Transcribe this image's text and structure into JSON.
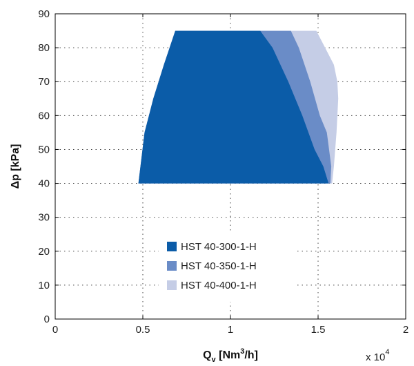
{
  "chart_data": {
    "type": "area",
    "xlabel_main": "Q",
    "xlabel_sub": "v",
    "xlabel_rest": " [Nm",
    "xlabel_sup": "3",
    "xlabel_end": "/h]",
    "ylabel": "Δp [kPa]",
    "x_multiplier_base": "x 10",
    "x_multiplier_exp": "4",
    "xlim": [
      0,
      20000
    ],
    "ylim": [
      0,
      90
    ],
    "xticks": [
      0,
      5000,
      10000,
      15000,
      20000
    ],
    "xtick_labels": [
      "0",
      "0.5",
      "1",
      "1.5",
      "2"
    ],
    "yticks": [
      0,
      10,
      20,
      30,
      40,
      50,
      60,
      70,
      80,
      90
    ],
    "ytick_labels": [
      "0",
      "10",
      "20",
      "30",
      "40",
      "50",
      "60",
      "70",
      "80",
      "90"
    ],
    "grid": true,
    "legend_position": "lower-center",
    "series": [
      {
        "name": "HST 40-400-1-H",
        "color": "#c5cde6",
        "points": [
          [
            6850,
            85
          ],
          [
            14900,
            85
          ],
          [
            15400,
            80
          ],
          [
            15900,
            75
          ],
          [
            16100,
            70
          ],
          [
            16150,
            65
          ],
          [
            16050,
            55
          ],
          [
            15900,
            45
          ],
          [
            15800,
            40
          ],
          [
            4750,
            40
          ],
          [
            5100,
            55
          ],
          [
            5600,
            65
          ],
          [
            6200,
            75
          ]
        ]
      },
      {
        "name": "HST 40-350-1-H",
        "color": "#6a8cc7",
        "points": [
          [
            6850,
            85
          ],
          [
            13450,
            85
          ],
          [
            13900,
            80
          ],
          [
            14550,
            70
          ],
          [
            15100,
            60
          ],
          [
            15500,
            55
          ],
          [
            15750,
            45
          ],
          [
            15700,
            40
          ],
          [
            4750,
            40
          ],
          [
            5100,
            55
          ],
          [
            5600,
            65
          ],
          [
            6200,
            75
          ]
        ]
      },
      {
        "name": "HST 40-300-1-H",
        "color": "#0b5ca8",
        "points": [
          [
            6850,
            85
          ],
          [
            11700,
            85
          ],
          [
            12400,
            80
          ],
          [
            13300,
            70
          ],
          [
            14100,
            60
          ],
          [
            14800,
            50
          ],
          [
            15300,
            45
          ],
          [
            15600,
            40
          ],
          [
            4750,
            40
          ],
          [
            5100,
            55
          ],
          [
            5600,
            65
          ],
          [
            6200,
            75
          ]
        ]
      }
    ],
    "legend_order": [
      "HST 40-300-1-H",
      "HST 40-350-1-H",
      "HST 40-400-1-H"
    ]
  }
}
